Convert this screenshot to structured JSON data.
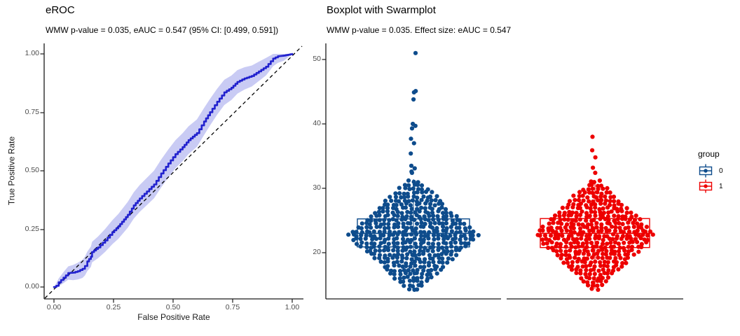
{
  "colors": {
    "roc_curve": "#2121CE",
    "roc_band": "#C9CBF4",
    "diagonal": "#000000",
    "axis_line": "#1a1a1a",
    "tick_text": "#4d4d4d",
    "group0": "#0E4C8C",
    "group1": "#ED0000"
  },
  "chart_data": [
    {
      "type": "line",
      "name": "eROC-curve-panel",
      "title": "eROC",
      "subtitle": "WMW p-value = 0.035, eAUC = 0.547 (95% CI: [0.499, 0.591])",
      "xlabel": "False Positive Rate",
      "ylabel": "True Positive Rate",
      "xlim": [
        0,
        1
      ],
      "ylim": [
        0,
        1
      ],
      "x_tick_labels": [
        "0.00",
        "0.25",
        "0.50",
        "0.75",
        "1.00"
      ],
      "y_tick_labels": [
        "1.00",
        "0.75",
        "0.50",
        "0.25",
        "0.00"
      ],
      "grid": false,
      "diagonal_reference": true,
      "ci_halfwidth_factor": 0.12,
      "stats": {
        "wmw_p_value": 0.035,
        "eAUC": 0.547,
        "ci95": [
          0.499,
          0.591
        ]
      },
      "points": [
        [
          0.0,
          0.0
        ],
        [
          0.01,
          0.005
        ],
        [
          0.02,
          0.02
        ],
        [
          0.04,
          0.04
        ],
        [
          0.06,
          0.06
        ],
        [
          0.08,
          0.062
        ],
        [
          0.1,
          0.068
        ],
        [
          0.12,
          0.078
        ],
        [
          0.13,
          0.09
        ],
        [
          0.14,
          0.11
        ],
        [
          0.155,
          0.13
        ],
        [
          0.16,
          0.15
        ],
        [
          0.185,
          0.17
        ],
        [
          0.215,
          0.2
        ],
        [
          0.245,
          0.235
        ],
        [
          0.27,
          0.26
        ],
        [
          0.31,
          0.31
        ],
        [
          0.335,
          0.35
        ],
        [
          0.36,
          0.38
        ],
        [
          0.39,
          0.41
        ],
        [
          0.42,
          0.44
        ],
        [
          0.45,
          0.487
        ],
        [
          0.48,
          0.53
        ],
        [
          0.51,
          0.57
        ],
        [
          0.54,
          0.6
        ],
        [
          0.565,
          0.63
        ],
        [
          0.6,
          0.66
        ],
        [
          0.63,
          0.71
        ],
        [
          0.655,
          0.75
        ],
        [
          0.685,
          0.795
        ],
        [
          0.715,
          0.835
        ],
        [
          0.745,
          0.855
        ],
        [
          0.77,
          0.88
        ],
        [
          0.8,
          0.895
        ],
        [
          0.83,
          0.905
        ],
        [
          0.86,
          0.925
        ],
        [
          0.89,
          0.945
        ],
        [
          0.92,
          0.98
        ],
        [
          0.94,
          0.99
        ],
        [
          0.965,
          0.993
        ],
        [
          1.0,
          1.0
        ]
      ]
    },
    {
      "type": "boxplot+swarm",
      "name": "boxplot-swarm-panel",
      "title": "Boxplot with Swarmplot",
      "subtitle": "WMW p-value = 0.035. Effect size: eAUC = 0.547",
      "ylim": [
        13,
        52
      ],
      "y_ticks": [
        50,
        40,
        30,
        20
      ],
      "y_tick_labels": [
        "50",
        "40",
        "30",
        "20"
      ],
      "grid": false,
      "stats": {
        "wmw_p_value": 0.035,
        "eAUC": 0.547
      },
      "legend": {
        "title": "group",
        "items": [
          {
            "label": "0"
          },
          {
            "label": "1"
          }
        ]
      },
      "groups": [
        {
          "name": "0",
          "color": "#0E4C8C",
          "box": {
            "q1": 20.9,
            "median": 23.0,
            "q3": 25.25,
            "whisker_low": 14.3,
            "whisker_high": 31.4
          },
          "cloud": {
            "min": 14.3,
            "max": 31.5,
            "peak": 22.7,
            "span": 9.2,
            "seed": 42
          },
          "outliers": [
            51.0,
            45.1,
            44.9,
            43.8,
            40.0,
            39.7,
            39.3,
            37.7,
            37.0,
            35.4,
            33.5,
            33.1,
            32.6,
            32.4
          ]
        },
        {
          "name": "1",
          "color": "#ED0000",
          "box": {
            "q1": 20.8,
            "median": 23.0,
            "q3": 25.3,
            "whisker_low": 14.4,
            "whisker_high": 31.2
          },
          "cloud": {
            "min": 14.3,
            "max": 31.3,
            "peak": 22.8,
            "span": 9.2,
            "seed": 1337
          },
          "outliers": [
            38.0,
            35.9,
            34.8,
            33.2,
            32.4
          ]
        }
      ]
    }
  ]
}
